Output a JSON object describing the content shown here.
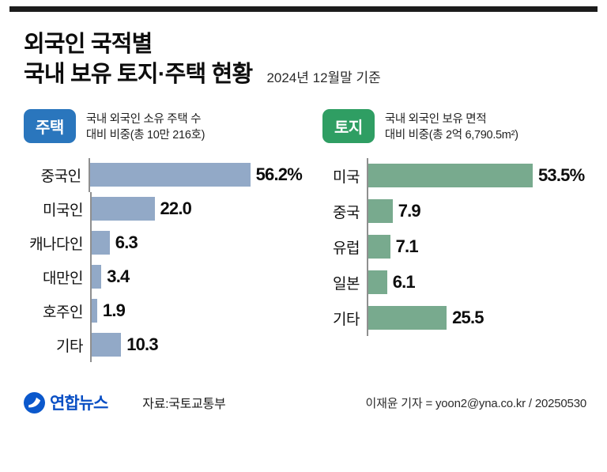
{
  "meta": {
    "title_line1": "외국인 국적별",
    "title_line2": "국내 보유 토지·주택 현황",
    "as_of": "2024년 12월말 기준"
  },
  "chart_data": [
    {
      "type": "bar",
      "orientation": "horizontal",
      "badge": "주택",
      "badge_color": "#2a76bd",
      "bar_color": "#92a9c7",
      "subtitle_line1": "국내 외국인 소유 주택 수",
      "subtitle_line2": "대비 비중(총 10만 216호)",
      "categories": [
        "중국인",
        "미국인",
        "캐나다인",
        "대만인",
        "호주인",
        "기타"
      ],
      "values": [
        56.2,
        22.0,
        6.3,
        3.4,
        1.9,
        10.3
      ],
      "value_labels": [
        "56.2%",
        "22.0",
        "6.3",
        "3.4",
        "1.9",
        "10.3"
      ],
      "unit": "%",
      "xlim": [
        0,
        60
      ],
      "grid": false,
      "legend": "none"
    },
    {
      "type": "bar",
      "orientation": "horizontal",
      "badge": "토지",
      "badge_color": "#2f9e63",
      "bar_color": "#78aa8e",
      "subtitle_line1": "국내 외국인 보유 면적",
      "subtitle_line2": "대비 비중(총 2억 6,790.5m²)",
      "categories": [
        "미국",
        "중국",
        "유럽",
        "일본",
        "기타"
      ],
      "values": [
        53.5,
        7.9,
        7.1,
        6.1,
        25.5
      ],
      "value_labels": [
        "53.5%",
        "7.9",
        "7.1",
        "6.1",
        "25.5"
      ],
      "unit": "%",
      "xlim": [
        0,
        60
      ],
      "grid": false,
      "legend": "none"
    }
  ],
  "footer": {
    "logo_text": "연합뉴스",
    "source": "자료:국토교통부",
    "credit": "이재윤 기자 = yoon2@yna.co.kr / 20250530"
  }
}
